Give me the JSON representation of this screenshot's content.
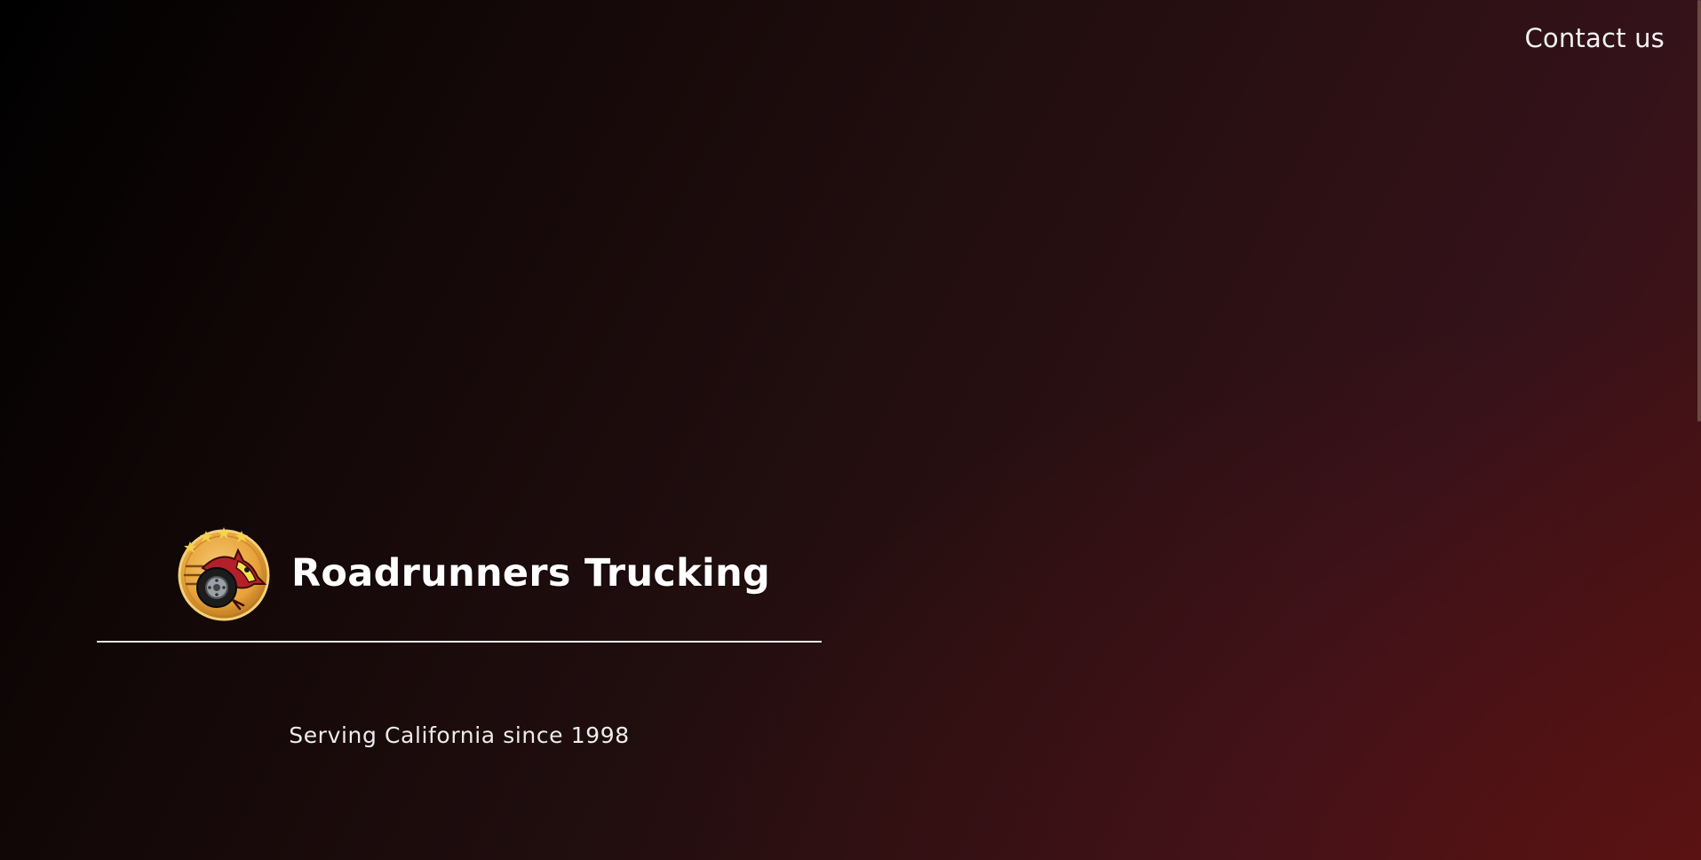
{
  "nav": {
    "contact_label": "Contact us"
  },
  "hero": {
    "brand_name": "Roadrunners Trucking",
    "tagline": "Serving California since 1998",
    "logo_icon": "roadrunner-wheel-logo-icon"
  },
  "colors": {
    "text": "#ffffff",
    "background_start": "#000000",
    "background_end": "#4a1212",
    "logo_gold": "#e8a33a",
    "logo_red": "#b3202a"
  }
}
